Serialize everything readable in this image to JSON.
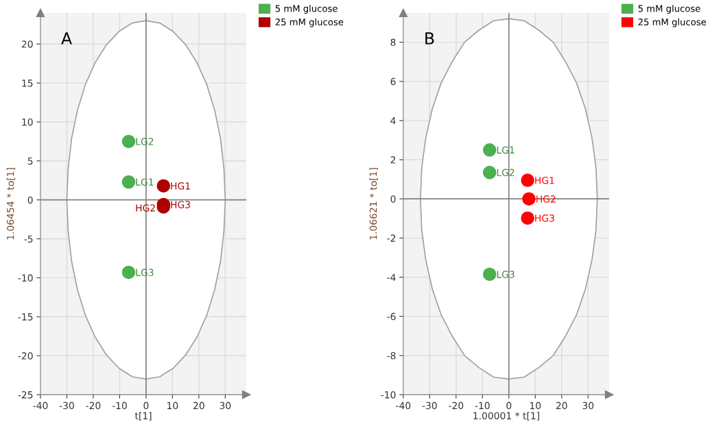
{
  "chart_data": [
    {
      "type": "scatter",
      "annotations": [
        "A",
        {
          "text": "LG1",
          "x": -6.6,
          "y": 2.3
        },
        {
          "text": "LG2",
          "x": -6.6,
          "y": 7.5
        },
        {
          "text": "LG3",
          "x": -6.6,
          "y": -9.3
        },
        {
          "text": "HG1",
          "x": 6.6,
          "y": 1.8
        },
        {
          "text": "HG2",
          "x": 6.6,
          "y": -0.9
        },
        {
          "text": "HG3",
          "x": 6.6,
          "y": -0.6
        }
      ],
      "xlabel": "t[1]",
      "ylabel": "1.06454 * to[1]",
      "xlim": [
        -40,
        38
      ],
      "ylim": [
        -25,
        24
      ],
      "xticks": [
        -40,
        -30,
        -20,
        -10,
        0,
        10,
        20,
        30
      ],
      "yticks": [
        -25,
        -20,
        -15,
        -10,
        -5,
        0,
        5,
        10,
        15,
        20
      ],
      "grid": true,
      "legend": "top right",
      "series": [
        {
          "type": "line",
          "color": "#808080",
          "x": [
            0,
            0
          ],
          "values": [
            -25,
            24
          ]
        },
        {
          "type": "line",
          "color": "#808080",
          "x": [
            -40,
            38
          ],
          "values": [
            0,
            0
          ]
        },
        {
          "type": "area",
          "color": "#a0a0a0",
          "x": [
            30,
            29.5,
            28.2,
            26,
            23,
            19.3,
            15,
            10.3,
            5.2,
            0,
            -5.2,
            -10.3,
            -15,
            -19.3,
            -23,
            -26,
            -28.2,
            -29.5,
            -30,
            -29.5,
            -28.2,
            -26,
            -23,
            -19.3,
            -15,
            -10.3,
            -5.2,
            0,
            5.2,
            10.3,
            15,
            19.3,
            23,
            26,
            28.2,
            29.5,
            30
          ],
          "values": [
            0,
            4,
            7.9,
            11.5,
            14.8,
            17.6,
            19.9,
            21.6,
            22.7,
            23,
            22.7,
            21.6,
            19.9,
            17.6,
            14.8,
            11.5,
            7.9,
            4,
            0,
            -4,
            -7.9,
            -11.5,
            -14.8,
            -17.6,
            -19.9,
            -21.6,
            -22.7,
            -23,
            -22.7,
            -21.6,
            -19.9,
            -17.6,
            -14.8,
            -11.5,
            -7.9,
            -4,
            0
          ]
        },
        {
          "name": "5 mM glucose",
          "color": "#4caf50",
          "x": [
            -6.6,
            -6.6,
            -6.6
          ],
          "values": [
            2.3,
            7.5,
            -9.3
          ]
        },
        {
          "name": "25 mM glucose",
          "color": "#b00000",
          "x": [
            6.6,
            6.6,
            6.6
          ],
          "values": [
            1.8,
            -0.9,
            -0.6
          ]
        }
      ]
    },
    {
      "type": "scatter",
      "annotations": [
        "B",
        {
          "text": "LG1",
          "x": -7.3,
          "y": 2.5
        },
        {
          "text": "LG2",
          "x": -7.3,
          "y": 1.35
        },
        {
          "text": "LG3",
          "x": -7.3,
          "y": -3.85
        },
        {
          "text": "HG1",
          "x": 7.1,
          "y": 0.95
        },
        {
          "text": "HG2",
          "x": 7.6,
          "y": 0.0
        },
        {
          "text": "HG3",
          "x": 7.1,
          "y": -0.98
        }
      ],
      "xlabel": "1.00001 * t[1]",
      "ylabel": "1.06621 * to[1]",
      "xlim": [
        -40,
        38
      ],
      "ylim": [
        -10,
        9.5
      ],
      "xticks": [
        -40,
        -30,
        -20,
        -10,
        0,
        10,
        20,
        30
      ],
      "yticks": [
        -10,
        -8,
        -6,
        -4,
        -2,
        0,
        2,
        4,
        6,
        8
      ],
      "grid": true,
      "legend": "top right",
      "series": [
        {
          "type": "line",
          "color": "#808080",
          "x": [
            0,
            0
          ],
          "values": [
            -10,
            9.5
          ]
        },
        {
          "type": "line",
          "color": "#808080",
          "x": [
            -40,
            38
          ],
          "values": [
            0,
            0
          ]
        },
        {
          "type": "area",
          "color": "#a0a0a0",
          "x": [
            33.5,
            33,
            31.5,
            29,
            25.7,
            21.5,
            16.8,
            11.5,
            5.8,
            0,
            -5.8,
            -11.5,
            -16.8,
            -21.5,
            -25.7,
            -29,
            -31.5,
            -33,
            -33.5,
            -33,
            -31.5,
            -29,
            -25.7,
            -21.5,
            -16.8,
            -11.5,
            -5.8,
            0,
            5.8,
            11.5,
            16.8,
            21.5,
            25.7,
            29,
            31.5,
            33,
            33.5
          ],
          "values": [
            0,
            1.6,
            3.1,
            4.6,
            5.9,
            7,
            8,
            8.6,
            9.1,
            9.2,
            9.1,
            8.6,
            8,
            7,
            5.9,
            4.6,
            3.1,
            1.6,
            0,
            -1.6,
            -3.1,
            -4.6,
            -5.9,
            -7,
            -8,
            -8.6,
            -9.1,
            -9.2,
            -9.1,
            -8.6,
            -8,
            -7,
            -5.9,
            -4.6,
            -3.1,
            -1.6,
            0
          ]
        },
        {
          "name": "5 mM glucose",
          "color": "#4caf50",
          "x": [
            -7.3,
            -7.3,
            -7.3
          ],
          "values": [
            2.5,
            1.35,
            -3.85
          ]
        },
        {
          "name": "25 mM glucose",
          "color": "#ff0000",
          "x": [
            7.1,
            7.6,
            7.1
          ],
          "values": [
            0.95,
            0.0,
            -0.98
          ]
        }
      ]
    }
  ]
}
